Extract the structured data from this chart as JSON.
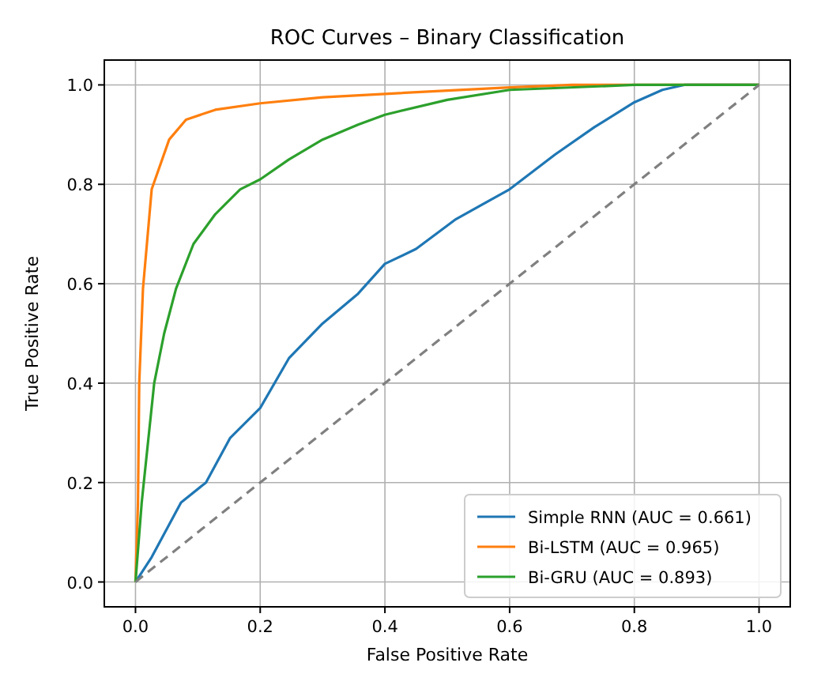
{
  "chart_data": {
    "type": "line",
    "title": "ROC Curves – Binary Classification",
    "xlabel": "False Positive Rate",
    "ylabel": "True Positive Rate",
    "xlim": [
      -0.05,
      1.05
    ],
    "ylim": [
      -0.05,
      1.05
    ],
    "xticks": [
      {
        "value": 0,
        "label": "0.0"
      },
      {
        "value": 0.2,
        "label": "0.2"
      },
      {
        "value": 0.4,
        "label": "0.4"
      },
      {
        "value": 0.6,
        "label": "0.6"
      },
      {
        "value": 0.8,
        "label": "0.8"
      },
      {
        "value": 1,
        "label": "1.0"
      }
    ],
    "yticks": [
      {
        "value": 0,
        "label": "0.0"
      },
      {
        "value": 0.2,
        "label": "0.2"
      },
      {
        "value": 0.4,
        "label": "0.4"
      },
      {
        "value": 0.6,
        "label": "0.6"
      },
      {
        "value": 0.8,
        "label": "0.8"
      },
      {
        "value": 1,
        "label": "1.0"
      }
    ],
    "grid": true,
    "legend": "bottom right",
    "series": [
      {
        "name": "Simple RNN (AUC = 0.661)",
        "color": "#1f77b4",
        "line_style": "solid",
        "x": [
          0,
          0.026,
          0.073,
          0.113,
          0.152,
          0.2,
          0.246,
          0.3,
          0.357,
          0.4,
          0.45,
          0.514,
          0.6,
          0.673,
          0.736,
          0.8,
          0.845,
          0.88,
          1
        ],
        "values": [
          0,
          0.05,
          0.16,
          0.2,
          0.29,
          0.35,
          0.45,
          0.52,
          0.58,
          0.64,
          0.67,
          0.73,
          0.79,
          0.86,
          0.915,
          0.965,
          0.99,
          1,
          1
        ]
      },
      {
        "name": "Bi-LSTM (AUC = 0.965)",
        "color": "#ff7f0e",
        "line_style": "solid",
        "x": [
          0,
          0.004,
          0.006,
          0.012,
          0.026,
          0.054,
          0.081,
          0.128,
          0.2,
          0.3,
          0.4,
          0.6,
          0.7,
          1
        ],
        "values": [
          0,
          0.16,
          0.4,
          0.59,
          0.79,
          0.89,
          0.93,
          0.95,
          0.963,
          0.975,
          0.982,
          0.995,
          1,
          1
        ]
      },
      {
        "name": "Bi-GRU (AUC = 0.893)",
        "color": "#2ca02c",
        "line_style": "solid",
        "x": [
          0,
          0.01,
          0.03,
          0.046,
          0.065,
          0.093,
          0.128,
          0.168,
          0.2,
          0.246,
          0.3,
          0.357,
          0.4,
          0.5,
          0.6,
          0.8,
          1
        ],
        "values": [
          0,
          0.16,
          0.4,
          0.5,
          0.59,
          0.68,
          0.74,
          0.79,
          0.81,
          0.85,
          0.89,
          0.92,
          0.94,
          0.97,
          0.99,
          1,
          1
        ]
      },
      {
        "color": "#808080",
        "line_style": "dashed",
        "x": [
          0,
          1
        ],
        "values": [
          0,
          1
        ]
      }
    ]
  }
}
